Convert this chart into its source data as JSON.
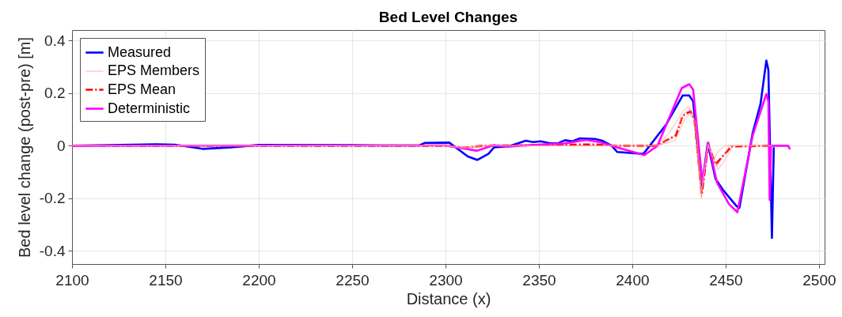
{
  "chart_data": {
    "type": "line",
    "title": "Bed Level Changes",
    "xlabel": "Distance (x)",
    "ylabel": "Bed level change (post-pre) [m]",
    "xlim": [
      2100,
      2503
    ],
    "xticks": [
      2100,
      2150,
      2200,
      2250,
      2300,
      2350,
      2400,
      2450,
      2500
    ],
    "ylim": [
      -0.45,
      0.44
    ],
    "yticks": [
      -0.4,
      -0.2,
      0,
      0.2,
      0.4
    ],
    "grid": true,
    "legend": "top left",
    "marker": "none",
    "series": [
      {
        "name": "Measured",
        "color": "#0000ff",
        "line_style": "solid",
        "x": [
          2100,
          2120,
          2145,
          2155,
          2170,
          2185,
          2200,
          2250,
          2265,
          2286,
          2289,
          2302,
          2312,
          2317,
          2323,
          2326,
          2334,
          2343,
          2347,
          2351,
          2356,
          2360,
          2364,
          2368,
          2372,
          2380,
          2384,
          2389,
          2392,
          2406,
          2418,
          2427,
          2430.5,
          2432.6,
          2437.2,
          2440.4,
          2444.6,
          2448.9,
          2456,
          2457.4,
          2464.5,
          2468.7,
          2471.8,
          2472.9,
          2474.8,
          2475.8
        ],
        "values": [
          0,
          0.002,
          0.005,
          0.004,
          -0.012,
          -0.006,
          0.003,
          0.002,
          0.001,
          0.001,
          0.011,
          0.012,
          -0.041,
          -0.054,
          -0.031,
          -0.006,
          -0.002,
          0.019,
          0.014,
          0.017,
          0.009,
          0.009,
          0.021,
          0.017,
          0.028,
          0.026,
          0.019,
          0,
          -0.024,
          -0.031,
          0.079,
          0.191,
          0.191,
          0.169,
          -0.161,
          0.009,
          -0.126,
          -0.171,
          -0.231,
          -0.236,
          0.049,
          0.159,
          0.324,
          0.289,
          -0.351,
          -0.006
        ]
      },
      {
        "name": "EPS Members",
        "color": "#ff9a9a",
        "line_style": "solid",
        "x": [
          2100,
          2300,
          2310,
          2320,
          2413,
          2420,
          2427,
          2430,
          2433,
          2437,
          2440.5,
          2443,
          2446,
          2450,
          2475
        ],
        "values": [
          0,
          0,
          -0.012,
          0,
          0,
          0.05,
          0.13,
          0.15,
          0.11,
          -0.2,
          0.01,
          -0.06,
          -0.02,
          0,
          0
        ]
      },
      {
        "color": "#ff9a9a",
        "line_style": "solid",
        "x": [
          2100,
          2300,
          2310,
          2320,
          2413,
          2423,
          2428,
          2431,
          2434,
          2437,
          2440.5,
          2446,
          2450,
          2454,
          2475
        ],
        "values": [
          0,
          0,
          -0.006,
          0,
          0,
          0.02,
          0.1,
          0.12,
          0.09,
          -0.17,
          0,
          -0.09,
          -0.05,
          0,
          0
        ]
      },
      {
        "color": "#ff9a9a",
        "line_style": "solid",
        "x": [
          2100,
          2300,
          2310,
          2320,
          2413,
          2422,
          2427.5,
          2430.5,
          2433,
          2437,
          2440.5,
          2445,
          2449,
          2452,
          2475
        ],
        "values": [
          0,
          0,
          -0.01,
          0,
          0,
          0.03,
          0.12,
          0.14,
          0.1,
          -0.19,
          0.008,
          -0.08,
          -0.04,
          0,
          0
        ]
      },
      {
        "name": "EPS Mean",
        "color": "#ff0000",
        "line_style": "dashed",
        "x": [
          2100,
          2300,
          2310,
          2320,
          2380,
          2390,
          2413,
          2423.4,
          2427,
          2431.2,
          2433.3,
          2437.2,
          2440.7,
          2444.6,
          2448.9,
          2453.1,
          2474.3
        ],
        "values": [
          0,
          0,
          -0.008,
          0,
          0.005,
          0,
          0,
          0.039,
          0.114,
          0.131,
          0.099,
          -0.186,
          0.004,
          -0.071,
          -0.036,
          -0.003,
          0
        ]
      },
      {
        "name": "Deterministic",
        "color": "#ff00ff",
        "line_style": "solid",
        "x": [
          2100,
          2300,
          2316.7,
          2325.8,
          2334,
          2340,
          2364,
          2375.3,
          2382.4,
          2391.6,
          2406.5,
          2413.5,
          2426.5,
          2430.5,
          2432.6,
          2437.6,
          2440.7,
          2445.4,
          2451.7,
          2456.3,
          2464.5,
          2471.8,
          2472.9,
          2473.6,
          2474.3,
          2483.5,
          2484.5
        ],
        "values": [
          0,
          0.001,
          -0.019,
          0.002,
          -0.003,
          0,
          0.009,
          0.022,
          0.014,
          -0.006,
          -0.036,
          0,
          0.219,
          0.234,
          0.214,
          -0.141,
          0.012,
          -0.141,
          -0.221,
          -0.253,
          0.039,
          0.197,
          0.169,
          -0.206,
          0,
          0,
          -0.014
        ]
      }
    ]
  }
}
